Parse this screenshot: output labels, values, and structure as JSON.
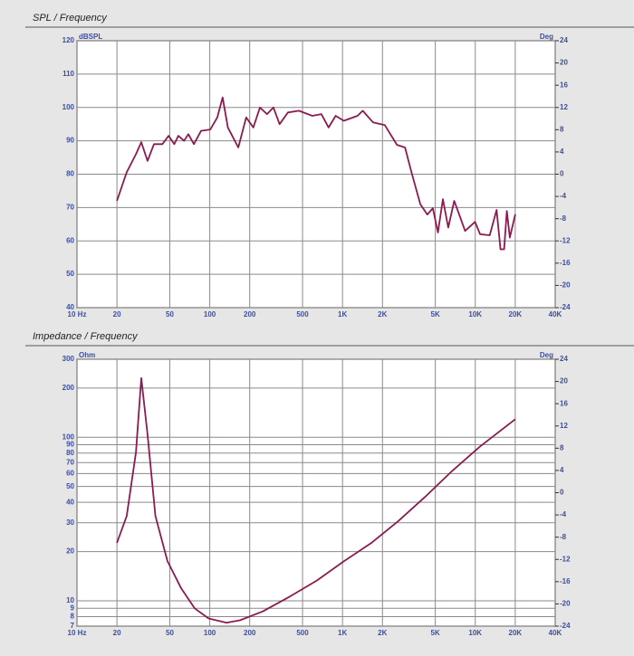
{
  "chart_data": [
    {
      "type": "line",
      "title": "SPL / Frequency",
      "y_label": "dBSPL",
      "y2_label": "Deg",
      "xscale": "log",
      "yscale": "linear",
      "grid": true,
      "color": "#8a1b50",
      "xlim": [
        10,
        40000
      ],
      "xticks": [
        {
          "value": 10,
          "label": "10 Hz"
        },
        20,
        50,
        100,
        200,
        500,
        {
          "value": 1000,
          "label": "1K"
        },
        {
          "value": 2000,
          "label": "2K"
        },
        {
          "value": 5000,
          "label": "5K"
        },
        {
          "value": 10000,
          "label": "10K"
        },
        {
          "value": 20000,
          "label": "20K"
        },
        {
          "value": 40000,
          "label": "40K"
        }
      ],
      "ylim": [
        40,
        120
      ],
      "yticks": [
        40,
        50,
        60,
        70,
        80,
        90,
        100,
        110,
        120
      ],
      "y2lim": [
        -24,
        24
      ],
      "y2ticks": [
        -24,
        -20,
        -16,
        -12,
        -8,
        -4,
        0,
        4,
        8,
        12,
        16,
        20,
        24
      ],
      "x": [
        20,
        23.7,
        27.8,
        30.5,
        34,
        38,
        44,
        49,
        54,
        58,
        64,
        69,
        76,
        86,
        101,
        114,
        125,
        137,
        164,
        188,
        213,
        239,
        270,
        302,
        336,
        388,
        469,
        592,
        693,
        786,
        888,
        1022,
        1296,
        1420,
        1700,
        2083,
        2572,
        2960,
        3305,
        3860,
        4350,
        4790,
        5230,
        5700,
        6260,
        6940,
        7620,
        8380,
        9960,
        10880,
        12840,
        14470,
        15500,
        16500,
        17300,
        18200,
        20000
      ],
      "values": [
        72,
        80.6,
        86,
        89.6,
        84,
        89,
        89,
        91.5,
        89,
        91.5,
        90,
        92,
        89,
        93,
        93.4,
        97,
        103,
        94,
        88,
        97,
        94,
        100,
        98,
        100,
        95,
        98.5,
        99,
        97.5,
        98,
        94,
        97.5,
        96,
        97.5,
        99,
        95.5,
        94.7,
        88.8,
        88,
        80.6,
        71,
        67.9,
        69.8,
        62.5,
        72.5,
        64,
        72,
        67.6,
        63,
        65.7,
        62,
        61.7,
        69.3,
        57.5,
        57.5,
        69,
        61,
        68
      ]
    },
    {
      "type": "line",
      "title": "Impedance / Frequency",
      "y_label": "Ohm",
      "y2_label": "Deg",
      "xscale": "log",
      "yscale": "log",
      "grid": true,
      "color": "#8a1b50",
      "xlim": [
        10,
        40000
      ],
      "xticks": [
        {
          "value": 10,
          "label": "10 Hz"
        },
        20,
        50,
        100,
        200,
        500,
        {
          "value": 1000,
          "label": "1K"
        },
        {
          "value": 2000,
          "label": "2K"
        },
        {
          "value": 5000,
          "label": "5K"
        },
        {
          "value": 10000,
          "label": "10K"
        },
        {
          "value": 20000,
          "label": "20K"
        },
        {
          "value": 40000,
          "label": "40K"
        }
      ],
      "ylim": [
        7,
        300
      ],
      "yticks": [
        7,
        8,
        9,
        10,
        20,
        30,
        40,
        50,
        60,
        70,
        80,
        90,
        100,
        200,
        300
      ],
      "y2lim": [
        -24,
        24
      ],
      "y2ticks": [
        -24,
        -20,
        -16,
        -12,
        -8,
        -4,
        0,
        4,
        8,
        12,
        16,
        20,
        24
      ],
      "x": [
        20,
        23.7,
        27.8,
        30.5,
        34,
        39,
        48,
        61,
        77,
        98,
        134,
        169,
        250,
        400,
        640,
        1020,
        1640,
        2630,
        4190,
        6700,
        10900,
        20000
      ],
      "values": [
        22.6,
        33,
        80.8,
        230,
        104,
        33,
        17.5,
        11.9,
        9,
        7.8,
        7.35,
        7.6,
        8.6,
        10.6,
        13.3,
        17.4,
        22.5,
        30.7,
        43.2,
        62.3,
        88,
        129
      ]
    }
  ]
}
